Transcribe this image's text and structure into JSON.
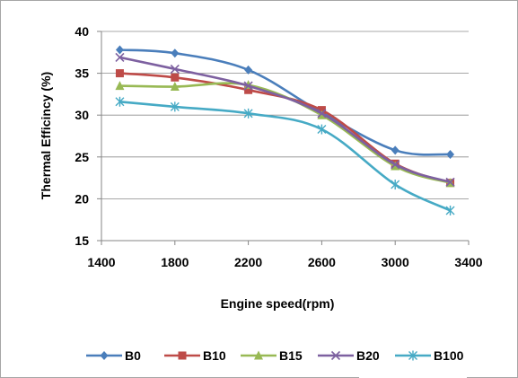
{
  "chart_data": {
    "type": "line",
    "xlabel": "Engine speed(rpm)",
    "ylabel": "Thermal Efficincy (%)",
    "xlim": [
      1400,
      3400
    ],
    "ylim": [
      15,
      40
    ],
    "xticks": [
      1400,
      1800,
      2200,
      2600,
      3000,
      3400
    ],
    "yticks": [
      15,
      20,
      25,
      30,
      35,
      40
    ],
    "grid": "horizontal",
    "legend_position": "bottom",
    "x": [
      1500,
      1800,
      2200,
      2600,
      3000,
      3300
    ],
    "series": [
      {
        "name": "B0",
        "color": "#4a7ebb",
        "marker": "diamond",
        "values": [
          37.8,
          37.4,
          35.4,
          30.3,
          25.8,
          25.3
        ]
      },
      {
        "name": "B10",
        "color": "#be4b48",
        "marker": "square",
        "values": [
          35.0,
          34.5,
          33.0,
          30.6,
          24.2,
          21.9
        ]
      },
      {
        "name": "B15",
        "color": "#98b954",
        "marker": "triangle",
        "values": [
          33.5,
          33.4,
          33.6,
          30.0,
          23.9,
          21.9
        ]
      },
      {
        "name": "B20",
        "color": "#7d60a0",
        "marker": "x",
        "values": [
          36.9,
          35.5,
          33.5,
          30.2,
          24.1,
          22.0
        ]
      },
      {
        "name": "B100",
        "color": "#46aac5",
        "marker": "star",
        "values": [
          31.6,
          31.0,
          30.2,
          28.3,
          21.7,
          18.6
        ]
      }
    ]
  }
}
